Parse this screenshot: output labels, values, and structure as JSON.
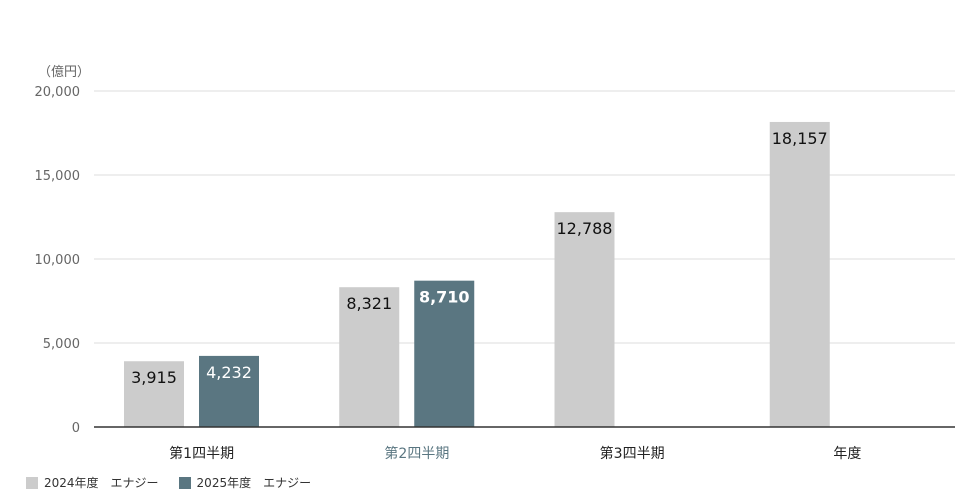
{
  "chart_data": {
    "type": "bar",
    "unit_label": "（億円）",
    "categories": [
      "第1四半期",
      "第2四半期",
      "第3四半期",
      "年度"
    ],
    "highlight_category": "第2四半期",
    "y_ticks": [
      "0",
      "5,000",
      "10,000",
      "15,000",
      "20,000"
    ],
    "ylim": [
      0,
      20000
    ],
    "grid": true,
    "legend_position": "bottom-left",
    "series": [
      {
        "name": "2024年度　エナジー",
        "color": "#cccccc",
        "values": [
          3915,
          8321,
          12788,
          18157
        ],
        "labels": [
          "3,915",
          "8,321",
          "12,788",
          "18,157"
        ]
      },
      {
        "name": "2025年度　エナジー",
        "color": "#5a7681",
        "values": [
          4232,
          8710,
          null,
          null
        ],
        "labels": [
          "4,232",
          "8,710",
          null,
          null
        ]
      }
    ]
  }
}
